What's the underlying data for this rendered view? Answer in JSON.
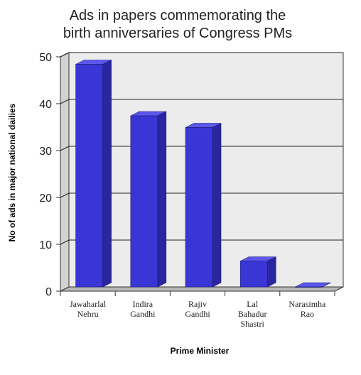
{
  "chart_data": {
    "type": "bar",
    "title_lines": [
      "Ads in papers commemorating the",
      "birth anniversaries of Congress PMs"
    ],
    "xlabel": "Prime Minister",
    "ylabel": "No of ads in major national dailies",
    "categories": [
      [
        "Jawaharlal",
        "Nehru"
      ],
      [
        "Indira",
        "Gandhi"
      ],
      [
        "Rajiv",
        "Gandhi"
      ],
      [
        "Lal",
        "Bahadur",
        "Shastri"
      ],
      [
        "Narasimha",
        "Rao"
      ]
    ],
    "values": [
      47.5,
      36.5,
      34,
      5.5,
      0
    ],
    "ylim": [
      0,
      50
    ],
    "yticks": [
      0,
      10,
      20,
      30,
      40,
      50
    ],
    "grid": true,
    "colors": {
      "bar_front": "#3a36d6",
      "bar_side": "#2a26a0",
      "bar_top": "#5b57ee",
      "wall": "#ececec",
      "side_wall": "#d2d2d2",
      "floor": "#b8b8b8",
      "grid": "#222222"
    }
  }
}
